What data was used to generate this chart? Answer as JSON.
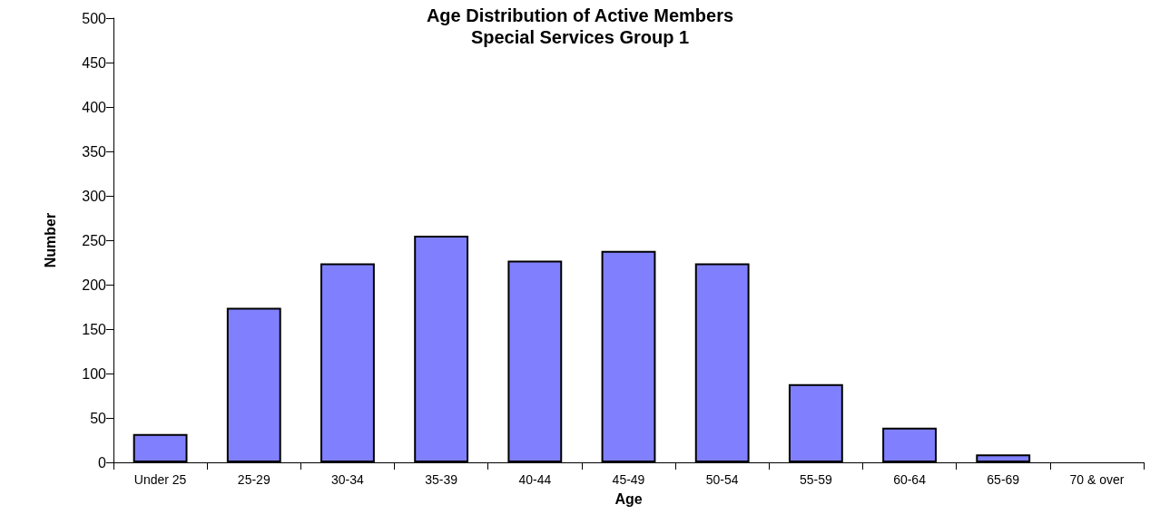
{
  "chart_data": {
    "type": "bar",
    "title": "Age Distribution of Active Members",
    "subtitle": "Special Services Group 1",
    "xlabel": "Age",
    "ylabel": "Number",
    "categories": [
      "Under 25",
      "25-29",
      "30-34",
      "35-39",
      "40-44",
      "45-49",
      "50-54",
      "55-59",
      "60-64",
      "65-69",
      "70 & over"
    ],
    "values": [
      32,
      174,
      224,
      255,
      227,
      238,
      224,
      88,
      39,
      9,
      0
    ],
    "color": "#8080ff",
    "ylim": [
      0,
      500
    ],
    "yticks": [
      0,
      50,
      100,
      150,
      200,
      250,
      300,
      350,
      400,
      450,
      500
    ],
    "grid": false
  }
}
